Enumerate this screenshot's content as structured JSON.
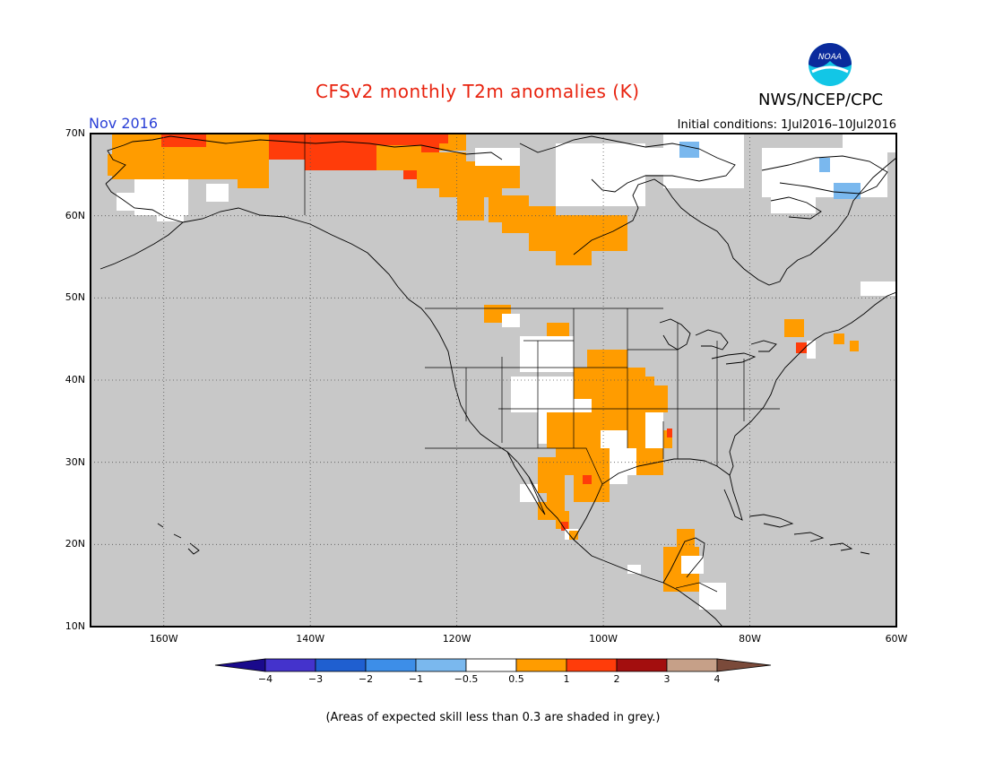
{
  "title": "CFSv2 monthly T2m anomalies (K)",
  "month": "Nov 2016",
  "initial_conditions": "Initial conditions: 1Jul2016–10Jul2016",
  "org": "NWS/NCEP/CPC",
  "logo_text": "NOAA",
  "lat_labels": [
    "70N",
    "60N",
    "50N",
    "40N",
    "30N",
    "20N",
    "10N"
  ],
  "lon_labels": [
    "160W",
    "140W",
    "120W",
    "100W",
    "80W",
    "60W"
  ],
  "colorbar": {
    "labels": [
      "−4",
      "−3",
      "−2",
      "−1",
      "−0.5",
      "0.5",
      "1",
      "2",
      "3",
      "4"
    ],
    "colors": [
      "#1a0a8c",
      "#4433cc",
      "#1f5fd0",
      "#3d8ee8",
      "#7ab8ee",
      "#ffffff",
      "#ff9c00",
      "#ff3c0a",
      "#a30e0e",
      "#c6a088",
      "#7a4a3a"
    ]
  },
  "footnote": "(Areas of expected skill less than 0.3 are shaded in grey.)",
  "colors": {
    "land_no_skill": "#c8c8c8",
    "near_normal": "#ffffff",
    "anom_05_1": "#ff9c00",
    "anom_1_2": "#ff3c0a",
    "neg_1_05": "#7ab8ee",
    "title_red": "#e8230f",
    "month_blue": "#2a3fd6"
  }
}
